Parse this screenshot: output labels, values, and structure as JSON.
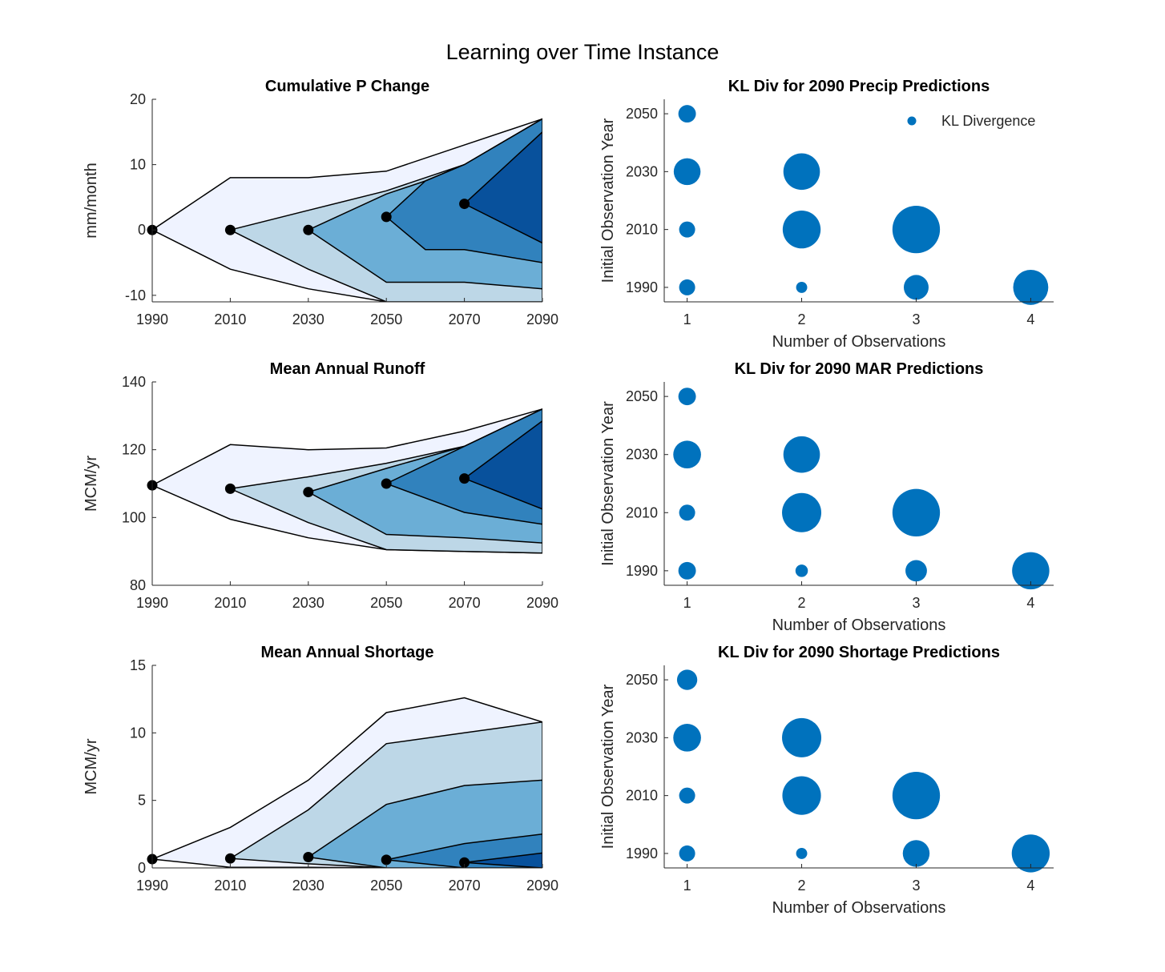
{
  "figure": {
    "title": "Learning over Time Instance"
  },
  "chart_data": [
    {
      "type": "area",
      "title": "Cumulative P Change",
      "xlabel": "",
      "ylabel": "mm/month",
      "xlim": [
        1990,
        2090
      ],
      "ylim": [
        -11,
        20
      ],
      "xticks": [
        1990,
        2010,
        2030,
        2050,
        2070,
        2090
      ],
      "yticks": [
        -10,
        0,
        10,
        20
      ],
      "band_colors": [
        "#eff3ff",
        "#bdd7e7",
        "#6baed6",
        "#3182bd",
        "#08519c"
      ],
      "bands": [
        {
          "x": [
            1990,
            2010,
            2030,
            2050,
            2070,
            2090
          ],
          "upper": [
            0,
            8,
            8,
            9,
            13,
            17
          ],
          "lower": [
            0,
            -6,
            -9,
            -11,
            -11,
            -11
          ]
        },
        {
          "x": [
            2010,
            2030,
            2050,
            2070,
            2090
          ],
          "upper": [
            0,
            3,
            6,
            10,
            17
          ],
          "lower": [
            0,
            -6,
            -11,
            -11,
            -11
          ]
        },
        {
          "x": [
            2030,
            2050,
            2060,
            2070,
            2090
          ],
          "upper": [
            0,
            5.5,
            7.5,
            10,
            17
          ],
          "lower": [
            0,
            -8,
            -8,
            -8,
            -9
          ]
        },
        {
          "x": [
            2050,
            2060,
            2070,
            2090
          ],
          "upper": [
            2,
            7.5,
            10,
            17
          ],
          "lower": [
            2,
            -3,
            -3,
            -5
          ]
        },
        {
          "x": [
            2070,
            2090
          ],
          "upper": [
            4,
            15
          ],
          "lower": [
            4,
            -2
          ]
        }
      ],
      "points": {
        "x": [
          1990,
          2010,
          2030,
          2050,
          2070
        ],
        "y": [
          0,
          0,
          0,
          2,
          4
        ]
      }
    },
    {
      "type": "scatter",
      "title": "KL Div for 2090 Precip Predictions",
      "xlabel": "Number of Observations",
      "ylabel": "Initial Observation Year",
      "xlim": [
        0.8,
        4.2
      ],
      "ylim": [
        1985,
        2055
      ],
      "xticks": [
        1,
        2,
        3,
        4
      ],
      "yticks": [
        1990,
        2010,
        2030,
        2050
      ],
      "legend": {
        "label": "KL Divergence",
        "position": "top-right"
      },
      "color": "#0072bd",
      "x": [
        1,
        1,
        1,
        1,
        2,
        2,
        2,
        3,
        3,
        4
      ],
      "y": [
        2050,
        2030,
        2010,
        1990,
        2030,
        2010,
        1990,
        2010,
        1990,
        1990
      ],
      "size": [
        0.3,
        0.7,
        0.25,
        0.25,
        1.3,
        1.4,
        0.12,
        2.2,
        0.6,
        1.2
      ]
    },
    {
      "type": "area",
      "title": "Mean Annual Runoff",
      "xlabel": "",
      "ylabel": "MCM/yr",
      "xlim": [
        1990,
        2090
      ],
      "ylim": [
        80,
        140
      ],
      "xticks": [
        1990,
        2010,
        2030,
        2050,
        2070,
        2090
      ],
      "yticks": [
        80,
        100,
        120,
        140
      ],
      "band_colors": [
        "#eff3ff",
        "#bdd7e7",
        "#6baed6",
        "#3182bd",
        "#08519c"
      ],
      "bands": [
        {
          "x": [
            1990,
            2010,
            2030,
            2050,
            2070,
            2090
          ],
          "upper": [
            109.5,
            121.5,
            120,
            120.5,
            125.5,
            132
          ],
          "lower": [
            109.5,
            99.5,
            94,
            90.5,
            90,
            89.5
          ]
        },
        {
          "x": [
            2010,
            2030,
            2050,
            2070,
            2090
          ],
          "upper": [
            108.5,
            112,
            116,
            121,
            132
          ],
          "lower": [
            108.5,
            98.5,
            90.5,
            90,
            89.5
          ]
        },
        {
          "x": [
            2030,
            2050,
            2070,
            2090
          ],
          "upper": [
            107.5,
            114.5,
            121,
            132
          ],
          "lower": [
            107.5,
            95,
            94,
            92.5
          ]
        },
        {
          "x": [
            2050,
            2070,
            2090
          ],
          "upper": [
            110,
            121,
            132
          ],
          "lower": [
            110,
            101.5,
            98
          ]
        },
        {
          "x": [
            2070,
            2090
          ],
          "upper": [
            111.5,
            128.5
          ],
          "lower": [
            111.5,
            102.5
          ]
        }
      ],
      "points": {
        "x": [
          1990,
          2010,
          2030,
          2050,
          2070
        ],
        "y": [
          109.5,
          108.5,
          107.5,
          110,
          111.5
        ]
      }
    },
    {
      "type": "scatter",
      "title": "KL Div for 2090 MAR Predictions",
      "xlabel": "Number of Observations",
      "ylabel": "Initial Observation Year",
      "xlim": [
        0.8,
        4.2
      ],
      "ylim": [
        1985,
        2055
      ],
      "xticks": [
        1,
        2,
        3,
        4
      ],
      "yticks": [
        1990,
        2010,
        2030,
        2050
      ],
      "color": "#0072bd",
      "x": [
        1,
        1,
        1,
        1,
        2,
        2,
        2,
        3,
        3,
        4
      ],
      "y": [
        2050,
        2030,
        2010,
        1990,
        2030,
        2010,
        1990,
        2010,
        1990,
        1990
      ],
      "size": [
        0.3,
        0.75,
        0.25,
        0.3,
        1.3,
        1.5,
        0.15,
        2.2,
        0.45,
        1.35
      ]
    },
    {
      "type": "area",
      "title": "Mean Annual Shortage",
      "xlabel": "",
      "ylabel": "MCM/yr",
      "xlim": [
        1990,
        2090
      ],
      "ylim": [
        0,
        15
      ],
      "xticks": [
        1990,
        2010,
        2030,
        2050,
        2070,
        2090
      ],
      "yticks": [
        0,
        5,
        10,
        15
      ],
      "band_colors": [
        "#eff3ff",
        "#bdd7e7",
        "#6baed6",
        "#3182bd",
        "#08519c"
      ],
      "bands": [
        {
          "x": [
            1990,
            2010,
            2030,
            2050,
            2070,
            2090
          ],
          "upper": [
            0.65,
            3.0,
            6.5,
            11.5,
            12.6,
            10.8
          ],
          "lower": [
            0.65,
            0.05,
            0.05,
            0.0,
            0.0,
            0.0
          ]
        },
        {
          "x": [
            2010,
            2030,
            2050,
            2070,
            2090
          ],
          "upper": [
            0.7,
            4.3,
            9.2,
            10.0,
            10.8
          ],
          "lower": [
            0.7,
            0.3,
            0.0,
            0.0,
            0.0
          ]
        },
        {
          "x": [
            2030,
            2050,
            2070,
            2090
          ],
          "upper": [
            0.8,
            4.7,
            6.1,
            6.5
          ],
          "lower": [
            0.8,
            0.0,
            0.0,
            0.0
          ]
        },
        {
          "x": [
            2050,
            2070,
            2090
          ],
          "upper": [
            0.6,
            1.8,
            2.5
          ],
          "lower": [
            0.6,
            0.0,
            0.0
          ]
        },
        {
          "x": [
            2070,
            2090
          ],
          "upper": [
            0.4,
            1.1
          ],
          "lower": [
            0.4,
            0.0
          ]
        }
      ],
      "points": {
        "x": [
          1990,
          2010,
          2030,
          2050,
          2070
        ],
        "y": [
          0.65,
          0.7,
          0.8,
          0.6,
          0.4
        ]
      }
    },
    {
      "type": "scatter",
      "title": "KL Div for 2090 Shortage Predictions",
      "xlabel": "Number of Observations",
      "ylabel": "Initial Observation Year",
      "xlim": [
        0.8,
        4.2
      ],
      "ylim": [
        1985,
        2055
      ],
      "xticks": [
        1,
        2,
        3,
        4
      ],
      "yticks": [
        1990,
        2010,
        2030,
        2050
      ],
      "color": "#0072bd",
      "x": [
        1,
        1,
        1,
        1,
        2,
        2,
        2,
        3,
        3,
        4
      ],
      "y": [
        2050,
        2030,
        2010,
        1990,
        2030,
        2010,
        1990,
        2010,
        1990,
        1990
      ],
      "size": [
        0.4,
        0.75,
        0.25,
        0.25,
        1.5,
        1.45,
        0.12,
        2.2,
        0.7,
        1.4
      ]
    }
  ]
}
